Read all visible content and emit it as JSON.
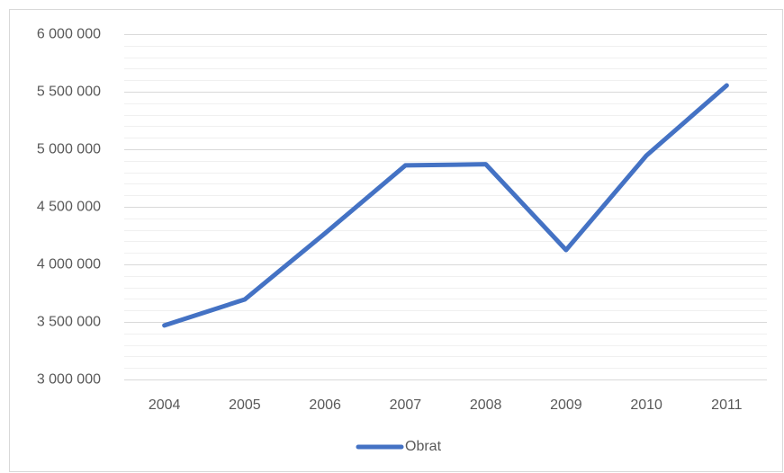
{
  "chart_data": {
    "type": "line",
    "categories": [
      "2004",
      "2005",
      "2006",
      "2007",
      "2008",
      "2009",
      "2010",
      "2011"
    ],
    "series": [
      {
        "name": "Obrat",
        "color": "#4472c4",
        "values": [
          3470000,
          3695000,
          4270000,
          4860000,
          4870000,
          4125000,
          4945000,
          5555000
        ]
      }
    ],
    "ylim": [
      3000000,
      6000000
    ],
    "yticks": [
      {
        "value": 3000000,
        "label": "3 000 000"
      },
      {
        "value": 3500000,
        "label": "3 500 000"
      },
      {
        "value": 4000000,
        "label": "4 000 000"
      },
      {
        "value": 4500000,
        "label": "4 500 000"
      },
      {
        "value": 5000000,
        "label": "5 000 000"
      },
      {
        "value": 5500000,
        "label": "5 500 000"
      },
      {
        "value": 6000000,
        "label": "6 000 000"
      }
    ],
    "minor_yticks": [
      3100000,
      3200000,
      3300000,
      3400000,
      3600000,
      3700000,
      3800000,
      3900000,
      4100000,
      4200000,
      4300000,
      4400000,
      4600000,
      4700000,
      4800000,
      4900000,
      5100000,
      5200000,
      5300000,
      5400000,
      5600000,
      5700000,
      5800000,
      5900000
    ],
    "grid": true,
    "legend": "bottom"
  }
}
